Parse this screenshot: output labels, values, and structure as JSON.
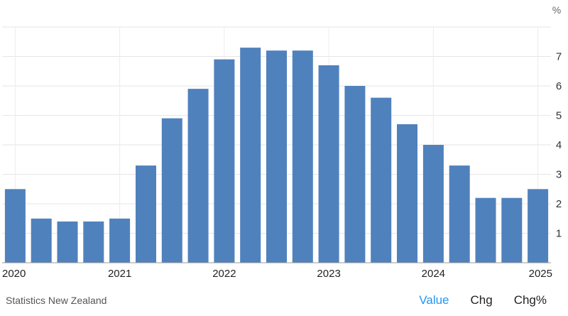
{
  "chart_data": {
    "type": "bar",
    "unit": "%",
    "x_tick_labels": [
      "2020",
      "2021",
      "2022",
      "2023",
      "2024",
      "2025"
    ],
    "y_ticks": [
      1,
      2,
      3,
      4,
      5,
      6,
      7
    ],
    "ylim": [
      0,
      8
    ],
    "grid": true,
    "bar_color": "#4f81bd",
    "series": [
      {
        "values": [
          2.5,
          1.5,
          1.4,
          1.4,
          1.5,
          3.3,
          4.9,
          5.9,
          6.9,
          7.3,
          7.2,
          7.2,
          6.7,
          6.0,
          5.6,
          4.7,
          4.0,
          3.3,
          2.2,
          2.2,
          2.5
        ]
      }
    ]
  },
  "source": "Statistics New Zealand",
  "toggles": {
    "value_label": "Value",
    "chg_label": "Chg",
    "chgpct_label": "Chg%"
  },
  "colors": {
    "active_toggle": "#2196f3"
  }
}
